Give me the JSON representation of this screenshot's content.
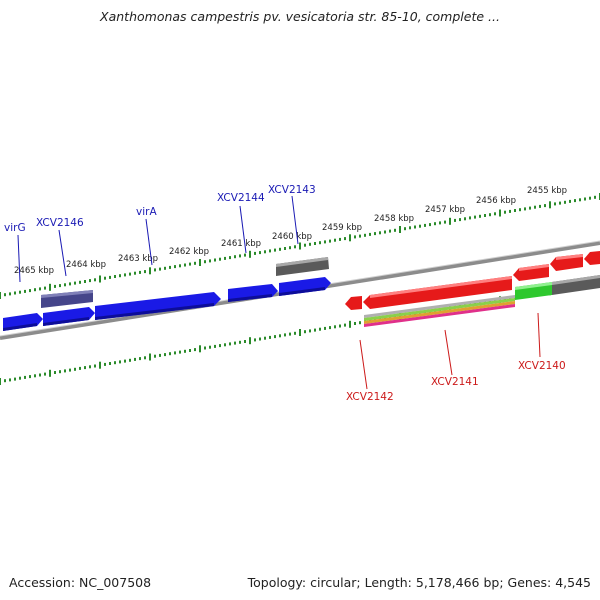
{
  "title": "Xanthomonas campestris pv. vesicatoria str. 85-10, complete ...",
  "footer": {
    "accession": "Accession: NC_007508",
    "summary": "Topology: circular; Length: 5,178,466 bp; Genes: 4,545"
  },
  "colors": {
    "forward_gene": "#1a1ae6",
    "reverse_gene": "#e61a1a",
    "other_gene": "#5a5a5a",
    "purple_gene": "#45458a",
    "green_gene": "#2ec82e",
    "tick": "#2a8a2a",
    "blue_label": "#1a1ab4",
    "red_label": "#cc1a1a"
  },
  "scale": {
    "unit": "kbp",
    "ticks": [
      {
        "label": "2465 kbp"
      },
      {
        "label": "2464 kbp"
      },
      {
        "label": "2463 kbp"
      },
      {
        "label": "2462 kbp"
      },
      {
        "label": "2461 kbp"
      },
      {
        "label": "2460 kbp"
      },
      {
        "label": "2459 kbp"
      },
      {
        "label": "2458 kbp"
      },
      {
        "label": "2457 kbp"
      },
      {
        "label": "2456 kbp"
      },
      {
        "label": "2455 kbp"
      }
    ]
  },
  "genes_forward": [
    {
      "label": "virG"
    },
    {
      "label": "XCV2146"
    },
    {
      "label": "virA"
    },
    {
      "label": "XCV2144"
    },
    {
      "label": "XCV2143"
    }
  ],
  "genes_reverse": [
    {
      "label": "XCV2142"
    },
    {
      "label": "XCV2141"
    },
    {
      "label": "XCV2140"
    }
  ]
}
